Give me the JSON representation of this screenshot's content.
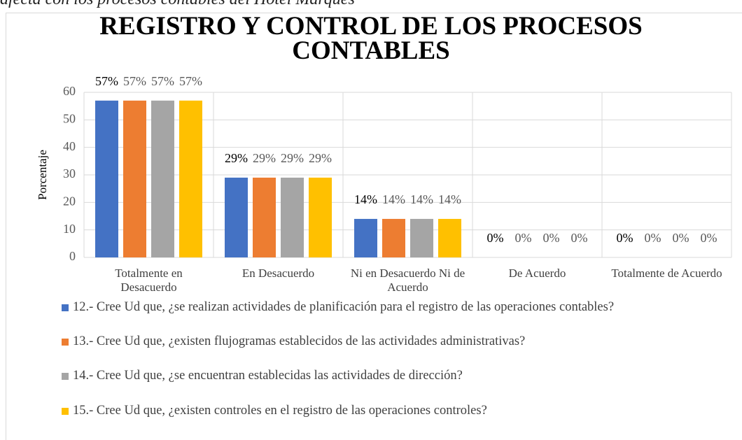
{
  "caption": "afecta con los procesos contables del Hotel Marqués",
  "chart_data": {
    "type": "bar",
    "title": "REGISTRO Y CONTROL DE LOS PROCESOS CONTABLES",
    "y_label": "Porcentaje",
    "categories": [
      "Totalmente en Desacuerdo",
      "En Desacuerdo",
      "Ni en Desacuerdo Ni de Acuerdo",
      "De Acuerdo",
      "Totalmente de Acuerdo"
    ],
    "series": [
      {
        "name": "12.- Cree Ud que, ¿se realizan actividades de planificación para el registro de las operaciones contables?",
        "color": "#4472c4",
        "values": [
          57,
          29,
          14,
          0,
          0
        ],
        "value_labels": [
          "57%",
          "29%",
          "14%",
          "0%",
          "0%"
        ]
      },
      {
        "name": "13.- Cree Ud que, ¿existen flujogramas establecidos de las actividades administrativas?",
        "color": "#ed7d31",
        "values": [
          57,
          29,
          14,
          0,
          0
        ],
        "value_labels": [
          "57%",
          "29%",
          "14%",
          "0%",
          "0%"
        ]
      },
      {
        "name": "14.- Cree Ud que, ¿se encuentran establecidas las actividades de dirección?",
        "color": "#a5a5a5",
        "values": [
          57,
          29,
          14,
          0,
          0
        ],
        "value_labels": [
          "57%",
          "29%",
          "14%",
          "0%",
          "0%"
        ]
      },
      {
        "name": "15.- Cree Ud que, ¿existen controles en el registro de las operaciones controles?",
        "color": "#ffc000",
        "values": [
          57,
          29,
          14,
          0,
          0
        ],
        "value_labels": [
          "57%",
          "29%",
          "14%",
          "0%",
          "0%"
        ]
      }
    ],
    "ylim": [
      0,
      60
    ],
    "yticks": [
      0,
      10,
      20,
      30,
      40,
      50,
      60
    ],
    "grid": true,
    "legend": "bottom"
  }
}
